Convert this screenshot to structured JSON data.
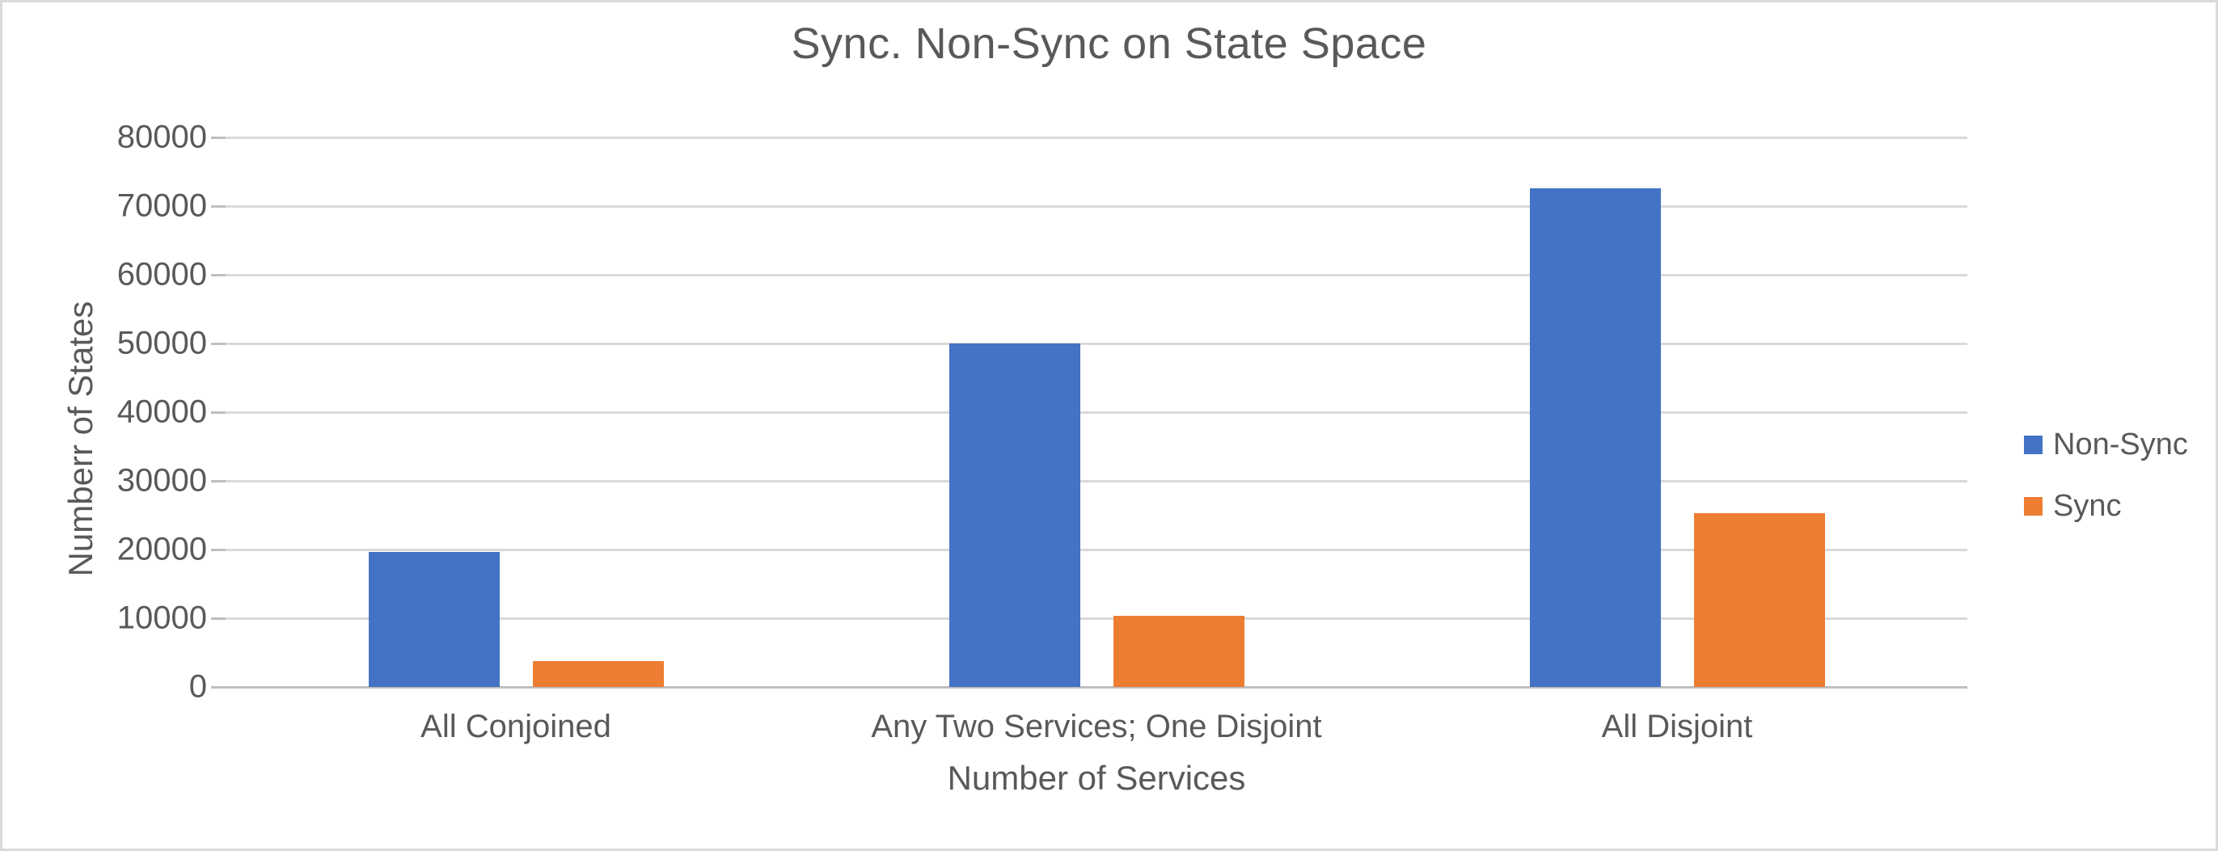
{
  "frame": {
    "background": "#FFFFFF",
    "border_color": "#D9D9D9"
  },
  "chart_data": {
    "type": "bar",
    "title": "Sync. Non-Sync on State Space",
    "xlabel": "Number of Services",
    "ylabel": "Numberr of States",
    "categories": [
      "All Conjoined",
      "Any Two Services; One Disjoint",
      "All Disjoint"
    ],
    "series": [
      {
        "name": "Non-Sync",
        "color": "#4472C4",
        "values": [
          19600,
          50000,
          72600
        ]
      },
      {
        "name": "Sync",
        "color": "#ED7D31",
        "values": [
          3800,
          10300,
          25300
        ]
      }
    ],
    "ylim": [
      0,
      80000
    ],
    "y_tick_interval": 10000,
    "y_tick_labels": [
      "0",
      "10000",
      "20000",
      "30000",
      "40000",
      "50000",
      "60000",
      "70000",
      "80000"
    ],
    "grid": "horizontal",
    "legend_position": "right",
    "text_color": "#595959",
    "gridline_color": "#D9D9D9",
    "axis_line_color": "#BFBFBF"
  }
}
